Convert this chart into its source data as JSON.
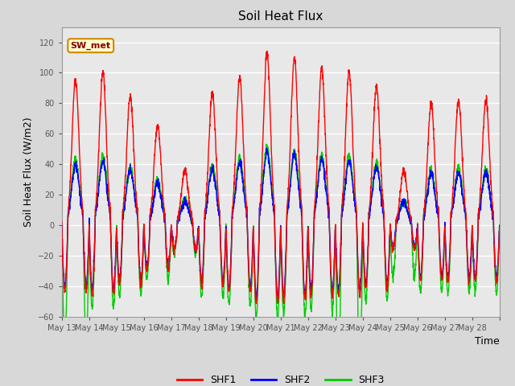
{
  "title": "Soil Heat Flux",
  "ylabel": "Soil Heat Flux (W/m2)",
  "xlabel": "Time",
  "ylim": [
    -60,
    130
  ],
  "yticks": [
    -60,
    -40,
    -20,
    0,
    20,
    40,
    60,
    80,
    100,
    120
  ],
  "xtick_labels": [
    "May 13",
    "May 14",
    "May 15",
    "May 16",
    "May 17",
    "May 18",
    "May 19",
    "May 20",
    "May 21",
    "May 22",
    "May 23",
    "May 24",
    "May 25",
    "May 26",
    "May 27",
    "May 28"
  ],
  "colors": {
    "SHF1": "#ff0000",
    "SHF2": "#0000ff",
    "SHF3": "#00cc00"
  },
  "annotation_text": "SW_met",
  "annotation_bg": "#ffffcc",
  "annotation_border": "#cc8800",
  "fig_bg": "#d8d8d8",
  "plot_bg": "#e8e8e8",
  "grid_color": "#ffffff",
  "n_days": 16,
  "points_per_day": 144
}
